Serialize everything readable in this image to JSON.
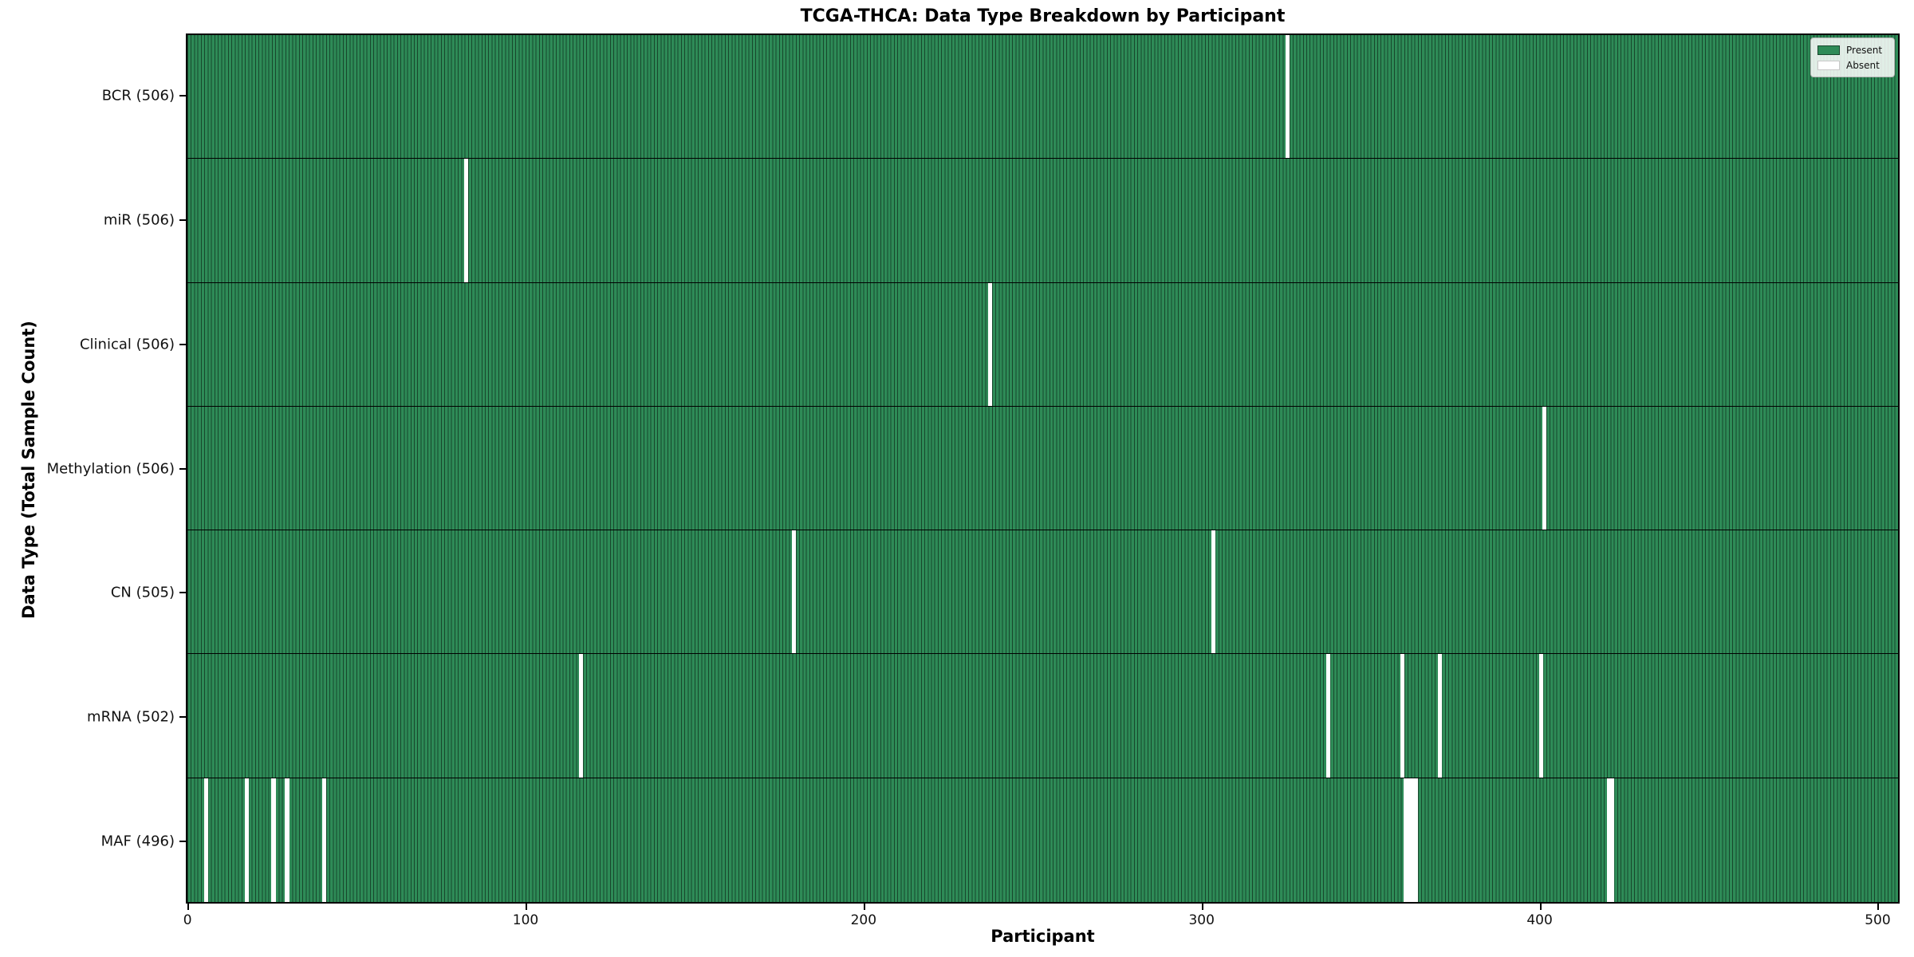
{
  "chart_data": {
    "type": "heatmap",
    "title": "TCGA-THCA: Data Type Breakdown by Participant",
    "xlabel": "Participant",
    "ylabel": "Data Type (Total Sample Count)",
    "x_ticks": [
      0,
      100,
      200,
      300,
      400,
      500
    ],
    "x_range": [
      0,
      507
    ],
    "total_participants": 507,
    "legend_position": "upper right",
    "grid": false,
    "colors": {
      "present": "#2e8b57",
      "absent": "#ffffff",
      "bar_edge": "#17472c",
      "row_divider": "#000000"
    },
    "legend": [
      {
        "label": "Present",
        "color": "#2e8b57"
      },
      {
        "label": "Absent",
        "color": "#ffffff"
      }
    ],
    "rows": [
      {
        "label": "BCR (506)",
        "name": "BCR",
        "present_count": 506,
        "absent_participants": [
          325
        ]
      },
      {
        "label": "miR (506)",
        "name": "miR",
        "present_count": 506,
        "absent_participants": [
          82
        ]
      },
      {
        "label": "Clinical (506)",
        "name": "Clinical",
        "present_count": 506,
        "absent_participants": [
          237
        ]
      },
      {
        "label": "Methylation (506)",
        "name": "Methylation",
        "present_count": 506,
        "absent_participants": [
          401
        ]
      },
      {
        "label": "CN (505)",
        "name": "CN",
        "present_count": 505,
        "absent_participants": [
          179,
          303
        ]
      },
      {
        "label": "mRNA (502)",
        "name": "mRNA",
        "present_count": 502,
        "absent_participants": [
          116,
          337,
          359,
          370,
          400
        ]
      },
      {
        "label": "MAF (496)",
        "name": "MAF",
        "present_count": 496,
        "absent_participants": [
          5,
          17,
          25,
          29,
          40,
          360,
          361,
          362,
          363,
          420,
          421
        ]
      }
    ]
  }
}
